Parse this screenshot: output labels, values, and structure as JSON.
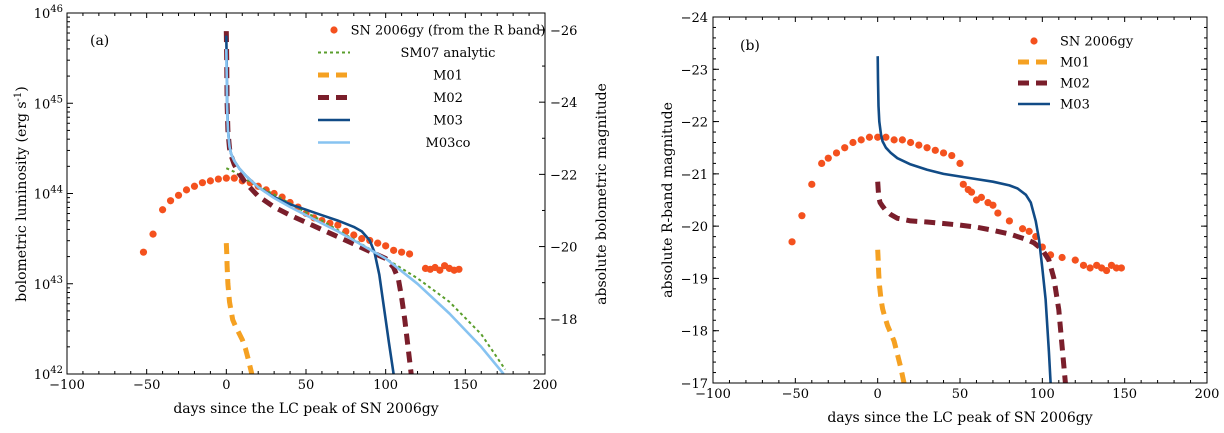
{
  "chart_data": [
    {
      "type": "line",
      "panel_label": "(a)",
      "xlabel": "days since the LC peak of SN 2006gy",
      "ylabel": "bolometric luminosity (erg s",
      "ylabel_sup": "-1",
      "ylabel_close": ")",
      "y2label": "absolute bolometric magnitude",
      "xlim": [
        -100,
        200
      ],
      "ylim_log10": [
        42,
        46
      ],
      "yscale": "log",
      "x_ticks": [
        "−100",
        "−50",
        "0",
        "50",
        "100",
        "150",
        "200"
      ],
      "x_tick_values": [
        -100,
        -50,
        0,
        50,
        100,
        150,
        200
      ],
      "y_ticks": [
        {
          "base": "10",
          "exp": "42",
          "value": 42
        },
        {
          "base": "10",
          "exp": "43",
          "value": 43
        },
        {
          "base": "10",
          "exp": "44",
          "value": 44
        },
        {
          "base": "10",
          "exp": "45",
          "value": 45
        },
        {
          "base": "10",
          "exp": "46",
          "value": 46
        }
      ],
      "y2_ticks": [
        {
          "label": "−18",
          "mag": -18
        },
        {
          "label": "−20",
          "mag": -20
        },
        {
          "label": "−22",
          "mag": -22
        },
        {
          "label": "−24",
          "mag": -24
        },
        {
          "label": "−26",
          "mag": -26
        }
      ],
      "y2_mag_at_logL42": -16.47,
      "legend_position": "top-right",
      "series": [
        {
          "name": "SN 2006gy (from the R band)",
          "style": "points",
          "color": "#f4511e",
          "x": [
            -52,
            -46,
            -40,
            -35,
            -30,
            -25,
            -20,
            -15,
            -10,
            -5,
            0,
            5,
            10,
            15,
            20,
            25,
            30,
            35,
            40,
            45,
            50,
            55,
            60,
            65,
            70,
            75,
            80,
            85,
            90,
            95,
            100,
            105,
            110,
            115,
            125,
            128,
            131,
            134,
            137,
            140,
            143,
            146
          ],
          "y": [
            43.35,
            43.55,
            43.82,
            43.92,
            43.98,
            44.04,
            44.08,
            44.12,
            44.14,
            44.16,
            44.17,
            44.17,
            44.14,
            44.12,
            44.08,
            44.04,
            44.0,
            43.96,
            43.9,
            43.85,
            43.78,
            43.73,
            43.7,
            43.67,
            43.65,
            43.58,
            43.54,
            43.5,
            43.48,
            43.45,
            43.42,
            43.37,
            43.35,
            43.33,
            43.17,
            43.16,
            43.18,
            43.15,
            43.2,
            43.17,
            43.15,
            43.16
          ]
        },
        {
          "name": "SM07 analytic",
          "style": "dotted",
          "color": "#5a9e2c",
          "x": [
            0,
            5,
            10,
            20,
            30,
            40,
            50,
            60,
            80,
            100,
            120,
            140,
            160,
            175
          ],
          "y": [
            44.28,
            44.24,
            44.18,
            44.08,
            43.99,
            43.89,
            43.79,
            43.7,
            43.49,
            43.28,
            43.06,
            42.8,
            42.44,
            42.05
          ]
        },
        {
          "name": "M01",
          "style": "dashed-thick",
          "color": "#f5a122",
          "x": [
            0,
            0.2,
            0.5,
            1,
            2,
            4,
            6,
            8,
            10,
            12,
            14,
            16
          ],
          "y": [
            43.45,
            43.35,
            43.2,
            43.0,
            42.8,
            42.6,
            42.52,
            42.45,
            42.38,
            42.28,
            42.15,
            42.0
          ]
        },
        {
          "name": "M02",
          "style": "dashed-thick",
          "color": "#7a1e2b",
          "x": [
            0,
            0.2,
            0.5,
            1,
            2,
            3,
            5,
            8,
            12,
            20,
            30,
            40,
            50,
            60,
            70,
            80,
            90,
            100,
            105,
            108,
            110,
            112,
            114,
            116
          ],
          "y": [
            45.8,
            45.5,
            45.0,
            44.7,
            44.5,
            44.42,
            44.32,
            44.22,
            44.12,
            43.97,
            43.85,
            43.76,
            43.68,
            43.6,
            43.52,
            43.44,
            43.36,
            43.28,
            43.18,
            43.05,
            42.85,
            42.6,
            42.3,
            42.0
          ]
        },
        {
          "name": "M03",
          "style": "solid",
          "color": "#114b86",
          "x": [
            0,
            0.2,
            0.5,
            1,
            2,
            3,
            5,
            8,
            12,
            20,
            30,
            40,
            50,
            60,
            70,
            80,
            85,
            90,
            93,
            96,
            98,
            100,
            102,
            104,
            105
          ],
          "y": [
            45.75,
            45.45,
            45.0,
            44.72,
            44.52,
            44.44,
            44.36,
            44.28,
            44.2,
            44.07,
            43.96,
            43.88,
            43.82,
            43.76,
            43.7,
            43.63,
            43.58,
            43.48,
            43.35,
            43.1,
            42.85,
            42.6,
            42.35,
            42.12,
            42.0
          ]
        },
        {
          "name": "M03co",
          "style": "solid",
          "color": "#87c3f1",
          "x": [
            0,
            0.2,
            0.5,
            1,
            2,
            3,
            5,
            8,
            12,
            20,
            30,
            40,
            50,
            60,
            70,
            80,
            90,
            100,
            120,
            140,
            160,
            174
          ],
          "y": [
            45.6,
            45.3,
            44.95,
            44.7,
            44.52,
            44.44,
            44.36,
            44.28,
            44.2,
            44.07,
            43.95,
            43.85,
            43.76,
            43.67,
            43.58,
            43.48,
            43.38,
            43.28,
            43.0,
            42.67,
            42.3,
            42.0
          ]
        }
      ]
    },
    {
      "type": "line",
      "panel_label": "(b)",
      "xlabel": "days since the LC peak of SN 2006gy",
      "ylabel": "absolute R-band magnitude",
      "xlim": [
        -100,
        200
      ],
      "ylim": [
        -17,
        -24
      ],
      "x_ticks": [
        "−100",
        "−50",
        "0",
        "50",
        "100",
        "150",
        "200"
      ],
      "x_tick_values": [
        -100,
        -50,
        0,
        50,
        100,
        150,
        200
      ],
      "y_ticks": [
        "−17",
        "−18",
        "−19",
        "−20",
        "−21",
        "−22",
        "−23",
        "−24"
      ],
      "y_tick_values": [
        -17,
        -18,
        -19,
        -20,
        -21,
        -22,
        -23,
        -24
      ],
      "legend_position": "top-right",
      "series": [
        {
          "name": "SN 2006gy",
          "style": "points",
          "color": "#f4511e",
          "x": [
            -52,
            -46,
            -40,
            -34,
            -30,
            -25,
            -20,
            -15,
            -10,
            -5,
            0,
            5,
            10,
            15,
            20,
            25,
            30,
            35,
            40,
            45,
            50,
            52,
            55,
            57,
            60,
            63,
            67,
            70,
            73,
            80,
            88,
            92,
            96,
            100,
            105,
            112,
            120,
            125,
            129,
            133,
            136,
            139,
            142,
            145,
            148
          ],
          "y": [
            -19.7,
            -20.2,
            -20.8,
            -21.2,
            -21.3,
            -21.4,
            -21.5,
            -21.6,
            -21.65,
            -21.7,
            -21.7,
            -21.7,
            -21.65,
            -21.65,
            -21.6,
            -21.55,
            -21.5,
            -21.45,
            -21.4,
            -21.35,
            -21.2,
            -20.8,
            -20.7,
            -20.65,
            -20.5,
            -20.55,
            -20.45,
            -20.4,
            -20.25,
            -20.1,
            -19.95,
            -19.9,
            -19.8,
            -19.6,
            -19.45,
            -19.4,
            -19.35,
            -19.25,
            -19.2,
            -19.25,
            -19.2,
            -19.15,
            -19.25,
            -19.2,
            -19.2
          ]
        },
        {
          "name": "M01",
          "style": "dashed-thick",
          "color": "#f5a122",
          "x": [
            0,
            0.3,
            0.6,
            1,
            2,
            3,
            4,
            6,
            8,
            10,
            12,
            14,
            16
          ],
          "y": [
            -19.55,
            -19.35,
            -19.1,
            -18.9,
            -18.6,
            -18.42,
            -18.3,
            -18.1,
            -17.95,
            -17.8,
            -17.55,
            -17.3,
            -17.0
          ]
        },
        {
          "name": "M02",
          "style": "dashed-thick",
          "color": "#7a1e2b",
          "x": [
            0,
            0.3,
            0.7,
            1.5,
            3,
            5,
            8,
            12,
            20,
            30,
            40,
            50,
            60,
            70,
            80,
            90,
            95,
            100,
            104,
            107,
            110,
            112,
            114
          ],
          "y": [
            -20.85,
            -20.7,
            -20.55,
            -20.45,
            -20.38,
            -20.3,
            -20.22,
            -20.15,
            -20.1,
            -20.08,
            -20.05,
            -20.02,
            -19.98,
            -19.92,
            -19.85,
            -19.75,
            -19.68,
            -19.55,
            -19.35,
            -19.0,
            -18.4,
            -17.7,
            -17.0
          ]
        },
        {
          "name": "M03",
          "style": "solid",
          "color": "#114b86",
          "x": [
            0,
            0.2,
            0.5,
            1,
            2,
            3,
            5,
            8,
            12,
            20,
            30,
            40,
            50,
            60,
            70,
            80,
            85,
            90,
            93,
            96,
            98,
            100,
            102,
            104,
            105
          ],
          "y": [
            -23.25,
            -22.8,
            -22.3,
            -22.0,
            -21.75,
            -21.62,
            -21.5,
            -21.4,
            -21.3,
            -21.18,
            -21.08,
            -21.0,
            -20.95,
            -20.9,
            -20.85,
            -20.78,
            -20.72,
            -20.6,
            -20.45,
            -20.1,
            -19.75,
            -19.2,
            -18.6,
            -17.6,
            -17.0
          ]
        }
      ]
    }
  ]
}
